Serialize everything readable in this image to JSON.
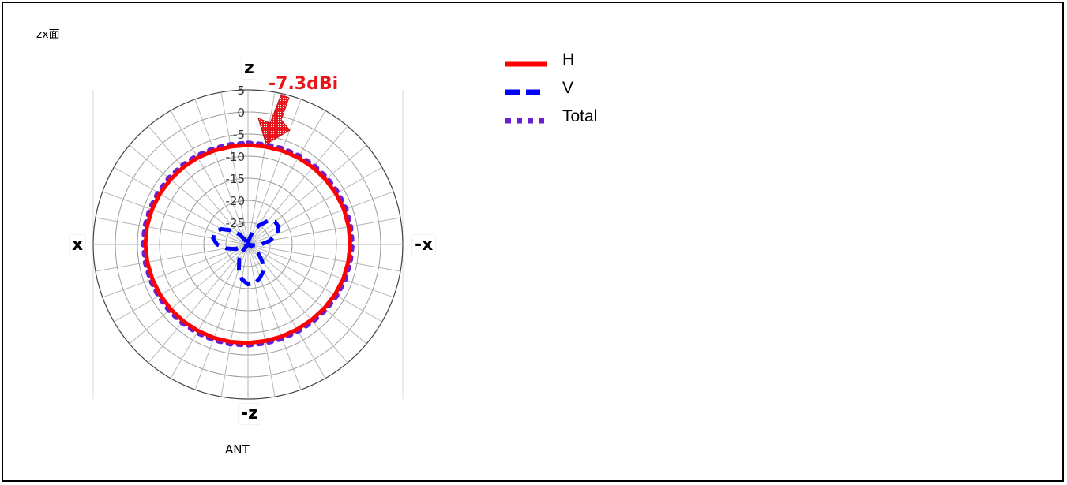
{
  "title": "zx面",
  "chart_data": {
    "type": "polar-line",
    "unit": "dBi",
    "radial_ticks": [
      5,
      0,
      -5,
      -10,
      -15,
      -20,
      -25
    ],
    "rmin": -30,
    "rmax": 5,
    "angle_step_deg": 10,
    "axis_labels": {
      "top": "z",
      "bottom": "-z",
      "left": "x",
      "right": "-x"
    },
    "peak_annotation": "-7.3dBi",
    "footer": "ANT",
    "series": [
      {
        "name": "H",
        "color": "#ff0000",
        "style": "solid",
        "description_level_dBi": -7.3,
        "values_by_angle": "approximately constant about -7.3 dBi (circle)"
      },
      {
        "name": "V",
        "color": "#0000ff",
        "style": "dashed",
        "values_dBi": [
          -30,
          -29,
          -27,
          -25,
          -23,
          -22,
          -22,
          -23,
          -25,
          -27,
          -29,
          -30,
          -29,
          -27,
          -25,
          -23,
          -22,
          -21,
          -21,
          -22,
          -24,
          -26,
          -28,
          -30,
          -29,
          -27,
          -25,
          -23,
          -22,
          -22,
          -23,
          -25,
          -27,
          -29,
          -30,
          -30
        ]
      },
      {
        "name": "Total",
        "color": "#6a1fd1",
        "style": "dotted",
        "values_dBi": [
          -7.0,
          -7.0,
          -6.9,
          -6.8,
          -6.7,
          -6.6,
          -6.5,
          -6.4,
          -6.4,
          -6.4,
          -6.5,
          -6.6,
          -6.8,
          -7.0,
          -7.2,
          -7.3,
          -7.3,
          -7.3,
          -7.2,
          -7.1,
          -7.0,
          -6.9,
          -6.8,
          -6.7,
          -6.6,
          -6.5,
          -6.4,
          -6.3,
          -6.3,
          -6.4,
          -6.5,
          -6.6,
          -6.7,
          -6.8,
          -6.9,
          -7.0
        ]
      }
    ]
  },
  "legend": [
    {
      "label": "H",
      "color": "#ff0000",
      "style": "solid"
    },
    {
      "label": "V",
      "color": "#0000ff",
      "style": "dashed"
    },
    {
      "label": "Total",
      "color": "#6a1fd1",
      "style": "dotted"
    }
  ]
}
